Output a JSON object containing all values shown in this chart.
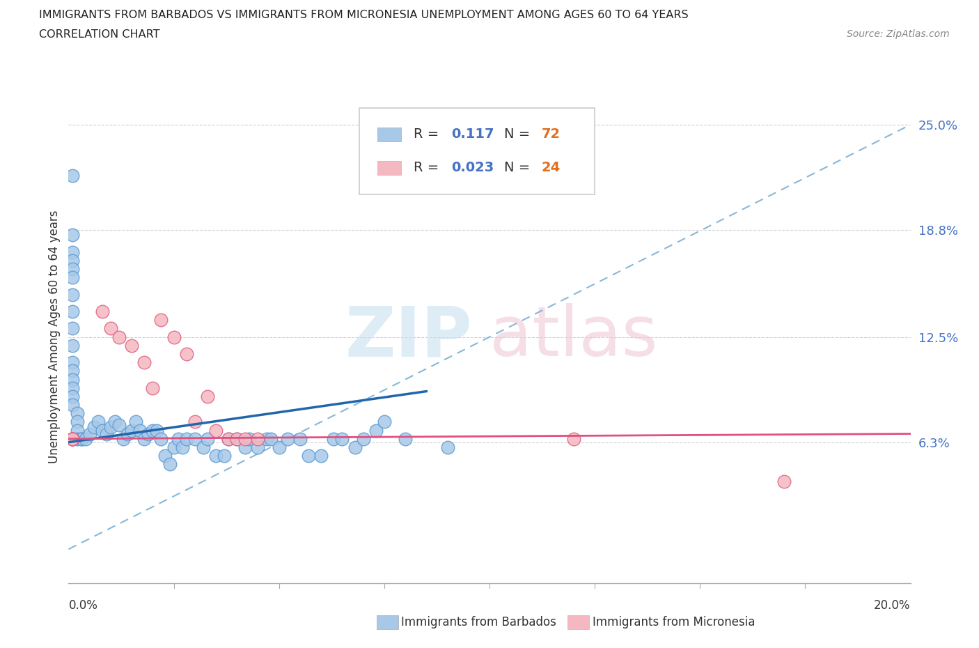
{
  "title_line1": "IMMIGRANTS FROM BARBADOS VS IMMIGRANTS FROM MICRONESIA UNEMPLOYMENT AMONG AGES 60 TO 64 YEARS",
  "title_line2": "CORRELATION CHART",
  "source_text": "Source: ZipAtlas.com",
  "ylabel": "Unemployment Among Ages 60 to 64 years",
  "ytick_labels": [
    "6.3%",
    "12.5%",
    "18.8%",
    "25.0%"
  ],
  "ytick_values": [
    0.063,
    0.125,
    0.188,
    0.25
  ],
  "xlim": [
    0.0,
    0.2
  ],
  "ylim": [
    -0.02,
    0.27
  ],
  "barbados_color": "#a8c8e8",
  "barbados_edge": "#5b9bd5",
  "micronesia_color": "#f4b8c1",
  "micronesia_edge": "#e06080",
  "barbados_label": "Immigrants from Barbados",
  "micronesia_label": "Immigrants from Micronesia",
  "watermark_zip_color": "#c8e0f0",
  "watermark_atlas_color": "#f0c8d8",
  "barbados_x": [
    0.001,
    0.001,
    0.001,
    0.001,
    0.001,
    0.001,
    0.001,
    0.001,
    0.001,
    0.001,
    0.001,
    0.001,
    0.001,
    0.001,
    0.001,
    0.001,
    0.002,
    0.002,
    0.002,
    0.002,
    0.003,
    0.003,
    0.004,
    0.005,
    0.006,
    0.007,
    0.008,
    0.009,
    0.01,
    0.011,
    0.012,
    0.013,
    0.014,
    0.015,
    0.016,
    0.017,
    0.018,
    0.019,
    0.02,
    0.021,
    0.022,
    0.023,
    0.024,
    0.025,
    0.026,
    0.027,
    0.028,
    0.03,
    0.032,
    0.033,
    0.035,
    0.037,
    0.038,
    0.04,
    0.042,
    0.043,
    0.045,
    0.047,
    0.048,
    0.05,
    0.052,
    0.055,
    0.057,
    0.06,
    0.063,
    0.065,
    0.068,
    0.07,
    0.073,
    0.075,
    0.08,
    0.09
  ],
  "barbados_y": [
    0.22,
    0.185,
    0.175,
    0.17,
    0.165,
    0.16,
    0.15,
    0.14,
    0.13,
    0.12,
    0.11,
    0.105,
    0.1,
    0.095,
    0.09,
    0.085,
    0.08,
    0.075,
    0.07,
    0.065,
    0.065,
    0.065,
    0.065,
    0.068,
    0.072,
    0.075,
    0.07,
    0.068,
    0.072,
    0.075,
    0.073,
    0.065,
    0.068,
    0.07,
    0.075,
    0.07,
    0.065,
    0.068,
    0.07,
    0.07,
    0.065,
    0.055,
    0.05,
    0.06,
    0.065,
    0.06,
    0.065,
    0.065,
    0.06,
    0.065,
    0.055,
    0.055,
    0.065,
    0.065,
    0.06,
    0.065,
    0.06,
    0.065,
    0.065,
    0.06,
    0.065,
    0.065,
    0.055,
    0.055,
    0.065,
    0.065,
    0.06,
    0.065,
    0.07,
    0.075,
    0.065,
    0.06
  ],
  "micronesia_x": [
    0.001,
    0.001,
    0.001,
    0.001,
    0.001,
    0.001,
    0.008,
    0.01,
    0.012,
    0.015,
    0.018,
    0.02,
    0.022,
    0.025,
    0.028,
    0.03,
    0.033,
    0.035,
    0.038,
    0.04,
    0.042,
    0.045,
    0.12,
    0.17
  ],
  "micronesia_y": [
    0.065,
    0.065,
    0.065,
    0.065,
    0.065,
    0.065,
    0.14,
    0.13,
    0.125,
    0.12,
    0.11,
    0.095,
    0.135,
    0.125,
    0.115,
    0.075,
    0.09,
    0.07,
    0.065,
    0.065,
    0.065,
    0.065,
    0.065,
    0.04
  ]
}
